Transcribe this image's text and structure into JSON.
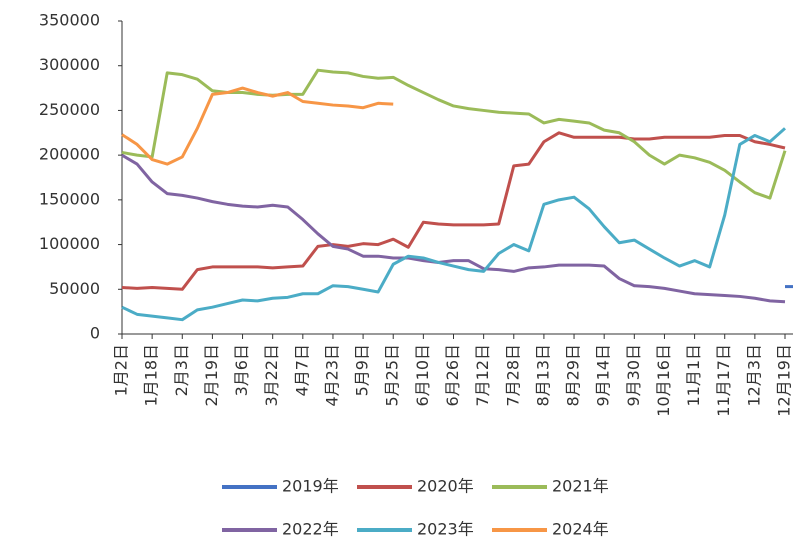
{
  "chart_data": {
    "type": "line",
    "categories": [
      "1月2日",
      null,
      "1月18日",
      null,
      "2月3日",
      null,
      "2月19日",
      null,
      "3月6日",
      null,
      "3月22日",
      null,
      "4月7日",
      null,
      "4月23日",
      null,
      "5月9日",
      null,
      "5月25日",
      null,
      "6月10日",
      null,
      "6月26日",
      null,
      "7月12日",
      null,
      "7月28日",
      null,
      "8月13日",
      null,
      "8月29日",
      null,
      "9月14日",
      null,
      "9月30日",
      null,
      "10月16日",
      null,
      "11月1日",
      null,
      "11月17日",
      null,
      "12月3日",
      null,
      "12月19日"
    ],
    "series": [
      {
        "name": "2019年",
        "color": "#4472c4",
        "values": [
          null,
          null,
          null,
          null,
          null,
          null,
          null,
          null,
          null,
          null,
          null,
          null,
          null,
          null,
          null,
          null,
          null,
          null,
          null,
          null,
          null,
          null,
          null,
          null,
          null,
          null,
          null,
          null,
          null,
          null,
          null,
          null,
          null,
          null,
          null,
          null,
          null,
          null,
          null,
          null,
          null,
          null,
          null,
          null,
          53000
        ]
      },
      {
        "name": "2020年",
        "color": "#c0504d",
        "values": [
          52000,
          51000,
          52000,
          51000,
          50000,
          72000,
          75000,
          75000,
          75000,
          75000,
          74000,
          75000,
          76000,
          98000,
          100000,
          98000,
          101000,
          100000,
          106000,
          97000,
          125000,
          123000,
          122000,
          122000,
          122000,
          123000,
          188000,
          190000,
          215000,
          225000,
          220000,
          220000,
          220000,
          220000,
          218000,
          218000,
          220000,
          220000,
          220000,
          220000,
          222000,
          222000,
          215000,
          212000,
          208000
        ]
      },
      {
        "name": "2021年",
        "color": "#9bbb59",
        "values": [
          203000,
          200000,
          198000,
          292000,
          290000,
          285000,
          272000,
          270000,
          270000,
          268000,
          267000,
          268000,
          268000,
          295000,
          293000,
          292000,
          288000,
          286000,
          287000,
          278000,
          270000,
          262000,
          255000,
          252000,
          250000,
          248000,
          247000,
          246000,
          236000,
          240000,
          238000,
          236000,
          228000,
          225000,
          215000,
          200000,
          190000,
          200000,
          197000,
          192000,
          183000,
          170000,
          158000,
          152000,
          205000
        ]
      },
      {
        "name": "2022年",
        "color": "#8064a2",
        "values": [
          200000,
          190000,
          170000,
          157000,
          155000,
          152000,
          148000,
          145000,
          143000,
          142000,
          144000,
          142000,
          128000,
          112000,
          98000,
          95000,
          87000,
          87000,
          85000,
          85000,
          82000,
          80000,
          82000,
          82000,
          73000,
          72000,
          70000,
          74000,
          75000,
          77000,
          77000,
          77000,
          76000,
          62000,
          54000,
          53000,
          51000,
          48000,
          45000,
          44000,
          43000,
          42000,
          40000,
          37000,
          36000
        ]
      },
      {
        "name": "2023年",
        "color": "#4bacc6",
        "values": [
          30000,
          22000,
          20000,
          18000,
          16000,
          27000,
          30000,
          34000,
          38000,
          37000,
          40000,
          41000,
          45000,
          45000,
          54000,
          53000,
          50000,
          47000,
          78000,
          87000,
          85000,
          80000,
          76000,
          72000,
          70000,
          90000,
          100000,
          93000,
          145000,
          150000,
          153000,
          140000,
          120000,
          102000,
          105000,
          95000,
          85000,
          76000,
          82000,
          75000,
          133000,
          212000,
          222000,
          215000,
          230000
        ]
      },
      {
        "name": "2024年",
        "color": "#f79646",
        "values": [
          223000,
          212000,
          195000,
          190000,
          198000,
          230000,
          268000,
          270000,
          275000,
          270000,
          266000,
          270000,
          260000,
          258000,
          256000,
          255000,
          253000,
          258000,
          257000,
          null,
          null,
          null,
          null,
          null,
          null,
          null,
          null,
          null,
          null,
          null,
          null,
          null,
          null,
          null,
          null,
          null,
          null,
          null,
          null,
          null,
          null,
          null,
          null,
          null,
          null
        ]
      }
    ],
    "ylim": [
      0,
      350000
    ],
    "yticks": [
      0,
      50000,
      100000,
      150000,
      200000,
      250000,
      300000,
      350000
    ]
  }
}
